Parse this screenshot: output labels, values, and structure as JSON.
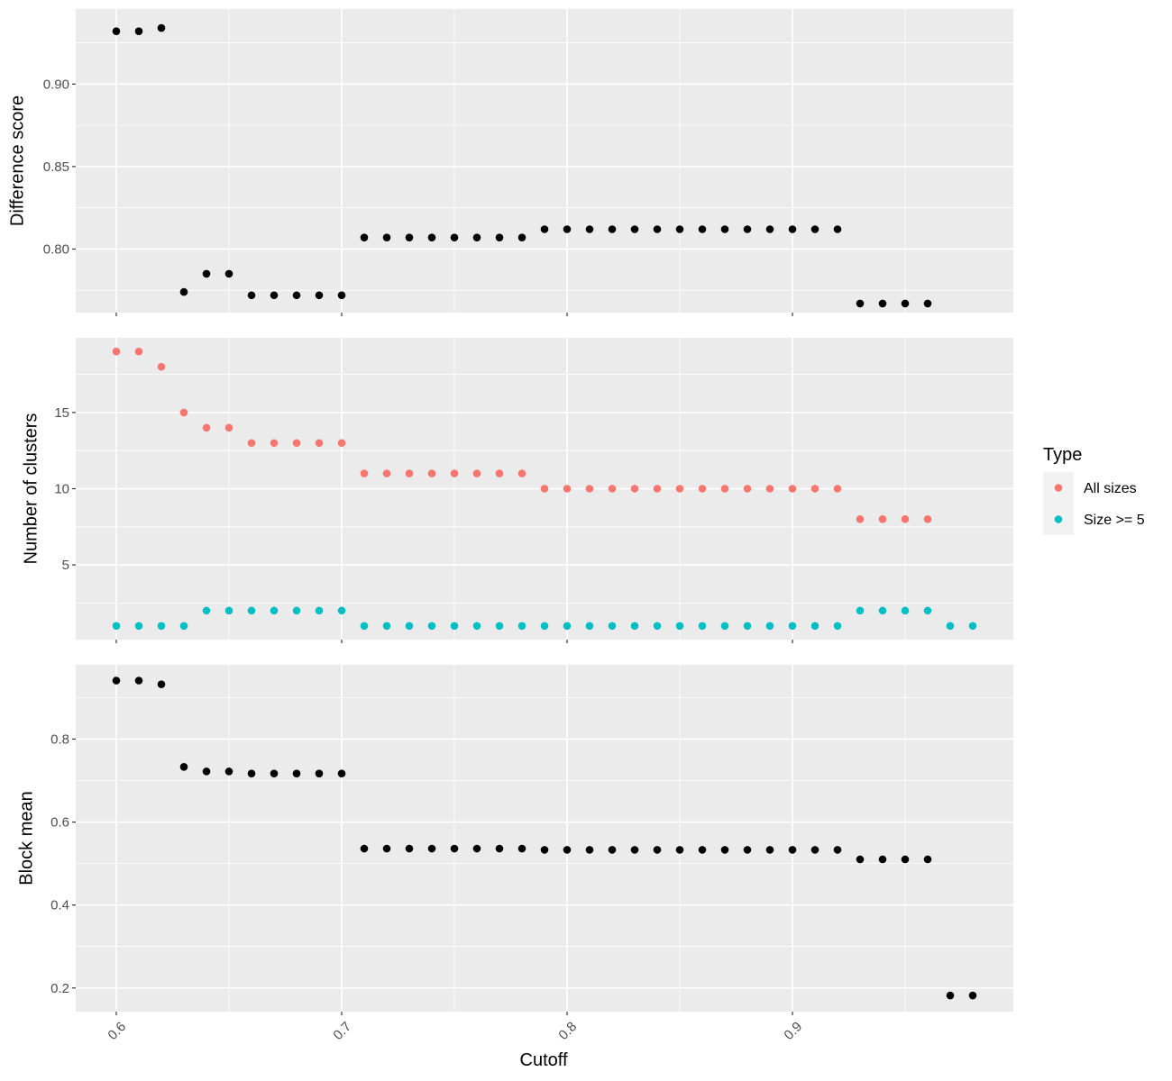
{
  "chart_data": {
    "type": "scatter",
    "xlabel": "Cutoff",
    "xlim": [
      0.582,
      0.998
    ],
    "x_ticks": [
      0.6,
      0.7,
      0.8,
      0.9
    ],
    "x_tick_labels": [
      "0.6",
      "0.7",
      "0.8",
      "0.9"
    ],
    "legend": {
      "title": "Type",
      "position": "right",
      "entries": [
        {
          "label": "All sizes",
          "color": "#F8766D"
        },
        {
          "label": "Size >= 5",
          "color": "#00BFC4"
        }
      ]
    },
    "panels": [
      {
        "ylabel": "Difference score",
        "ylim": [
          0.7615,
          0.9455
        ],
        "y_ticks": [
          0.8,
          0.85,
          0.9
        ],
        "y_tick_labels": [
          "0.80",
          "0.85",
          "0.90"
        ],
        "series": [
          {
            "color": "#000000",
            "x": [
              0.6,
              0.61,
              0.62,
              0.63,
              0.64,
              0.65,
              0.66,
              0.67,
              0.68,
              0.69,
              0.7,
              0.71,
              0.72,
              0.73,
              0.74,
              0.75,
              0.76,
              0.77,
              0.78,
              0.79,
              0.8,
              0.81,
              0.82,
              0.83,
              0.84,
              0.85,
              0.86,
              0.87,
              0.88,
              0.89,
              0.9,
              0.91,
              0.92,
              0.93,
              0.94,
              0.95,
              0.96
            ],
            "y": [
              0.932,
              0.932,
              0.934,
              0.774,
              0.785,
              0.785,
              0.772,
              0.772,
              0.772,
              0.772,
              0.772,
              0.807,
              0.807,
              0.807,
              0.807,
              0.807,
              0.807,
              0.807,
              0.807,
              0.812,
              0.812,
              0.812,
              0.812,
              0.812,
              0.812,
              0.812,
              0.812,
              0.812,
              0.812,
              0.812,
              0.812,
              0.812,
              0.812,
              0.767,
              0.767,
              0.767,
              0.767
            ]
          }
        ]
      },
      {
        "ylabel": "Number of clusters",
        "ylim": [
          0.1,
          19.9
        ],
        "y_ticks": [
          5,
          10,
          15
        ],
        "y_tick_labels": [
          "5",
          "10",
          "15"
        ],
        "series": [
          {
            "name": "All sizes",
            "color": "#F8766D",
            "x": [
              0.6,
              0.61,
              0.62,
              0.63,
              0.64,
              0.65,
              0.66,
              0.67,
              0.68,
              0.69,
              0.7,
              0.71,
              0.72,
              0.73,
              0.74,
              0.75,
              0.76,
              0.77,
              0.78,
              0.79,
              0.8,
              0.81,
              0.82,
              0.83,
              0.84,
              0.85,
              0.86,
              0.87,
              0.88,
              0.89,
              0.9,
              0.91,
              0.92,
              0.93,
              0.94,
              0.95,
              0.96
            ],
            "y": [
              19,
              19,
              18,
              15,
              14,
              14,
              13,
              13,
              13,
              13,
              13,
              11,
              11,
              11,
              11,
              11,
              11,
              11,
              11,
              10,
              10,
              10,
              10,
              10,
              10,
              10,
              10,
              10,
              10,
              10,
              10,
              10,
              10,
              8,
              8,
              8,
              8
            ]
          },
          {
            "name": "Size >= 5",
            "color": "#00BFC4",
            "x": [
              0.6,
              0.61,
              0.62,
              0.63,
              0.64,
              0.65,
              0.66,
              0.67,
              0.68,
              0.69,
              0.7,
              0.71,
              0.72,
              0.73,
              0.74,
              0.75,
              0.76,
              0.77,
              0.78,
              0.79,
              0.8,
              0.81,
              0.82,
              0.83,
              0.84,
              0.85,
              0.86,
              0.87,
              0.88,
              0.89,
              0.9,
              0.91,
              0.92,
              0.93,
              0.94,
              0.95,
              0.96,
              0.97,
              0.98
            ],
            "y": [
              1,
              1,
              1,
              1,
              2,
              2,
              2,
              2,
              2,
              2,
              2,
              1,
              1,
              1,
              1,
              1,
              1,
              1,
              1,
              1,
              1,
              1,
              1,
              1,
              1,
              1,
              1,
              1,
              1,
              1,
              1,
              1,
              1,
              2,
              2,
              2,
              2,
              1,
              1
            ]
          }
        ]
      },
      {
        "ylabel": "Block mean",
        "ylim": [
          0.143,
          0.979
        ],
        "y_ticks": [
          0.2,
          0.4,
          0.6,
          0.8
        ],
        "y_tick_labels": [
          "0.2",
          "0.4",
          "0.6",
          "0.8"
        ],
        "series": [
          {
            "color": "#000000",
            "x": [
              0.6,
              0.61,
              0.62,
              0.63,
              0.64,
              0.65,
              0.66,
              0.67,
              0.68,
              0.69,
              0.7,
              0.71,
              0.72,
              0.73,
              0.74,
              0.75,
              0.76,
              0.77,
              0.78,
              0.79,
              0.8,
              0.81,
              0.82,
              0.83,
              0.84,
              0.85,
              0.86,
              0.87,
              0.88,
              0.89,
              0.9,
              0.91,
              0.92,
              0.93,
              0.94,
              0.95,
              0.96,
              0.97,
              0.98
            ],
            "y": [
              0.941,
              0.941,
              0.932,
              0.733,
              0.722,
              0.722,
              0.717,
              0.717,
              0.717,
              0.717,
              0.717,
              0.536,
              0.536,
              0.536,
              0.536,
              0.536,
              0.536,
              0.536,
              0.536,
              0.533,
              0.533,
              0.533,
              0.533,
              0.533,
              0.533,
              0.533,
              0.533,
              0.533,
              0.533,
              0.533,
              0.533,
              0.533,
              0.533,
              0.51,
              0.51,
              0.51,
              0.51,
              0.182,
              0.182
            ]
          }
        ]
      }
    ]
  }
}
